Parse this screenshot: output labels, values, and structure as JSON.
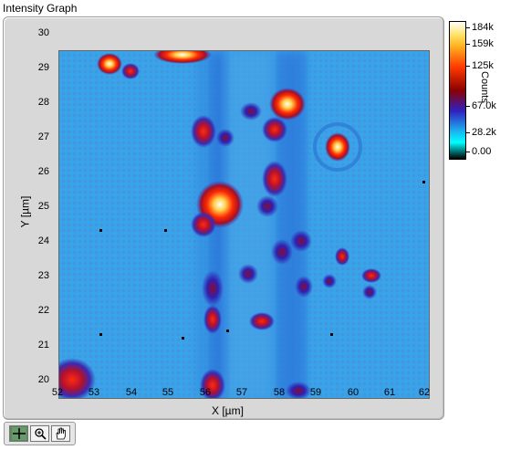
{
  "graph": {
    "title": "Intensity Graph",
    "y_label": "Y [µm]",
    "x_label": "X [µm]",
    "y_ticks": [
      "30",
      "29",
      "28",
      "27",
      "26",
      "25",
      "24",
      "23",
      "22",
      "21",
      "20"
    ],
    "x_ticks": [
      "52",
      "53",
      "54",
      "55",
      "56",
      "57",
      "58",
      "59",
      "60",
      "61",
      "62"
    ],
    "x_range": [
      52,
      62
    ],
    "y_range": [
      20,
      30
    ]
  },
  "colorbar": {
    "label": "Counts",
    "ticks": [
      "184k",
      "159k",
      "125k",
      "67.0k",
      "28.2k",
      "0.00"
    ],
    "tick_values": [
      184000,
      159000,
      125000,
      67000,
      28200,
      0
    ],
    "colors": [
      "#ffffff",
      "#ffd84a",
      "#ff3a00",
      "#8b0000",
      "#2020c0",
      "#1bb4f0",
      "#00ffff",
      "#000000"
    ]
  },
  "palette": {
    "buttons": [
      "cursor-move-icon",
      "zoom-icon",
      "pan-hand-icon"
    ]
  }
}
